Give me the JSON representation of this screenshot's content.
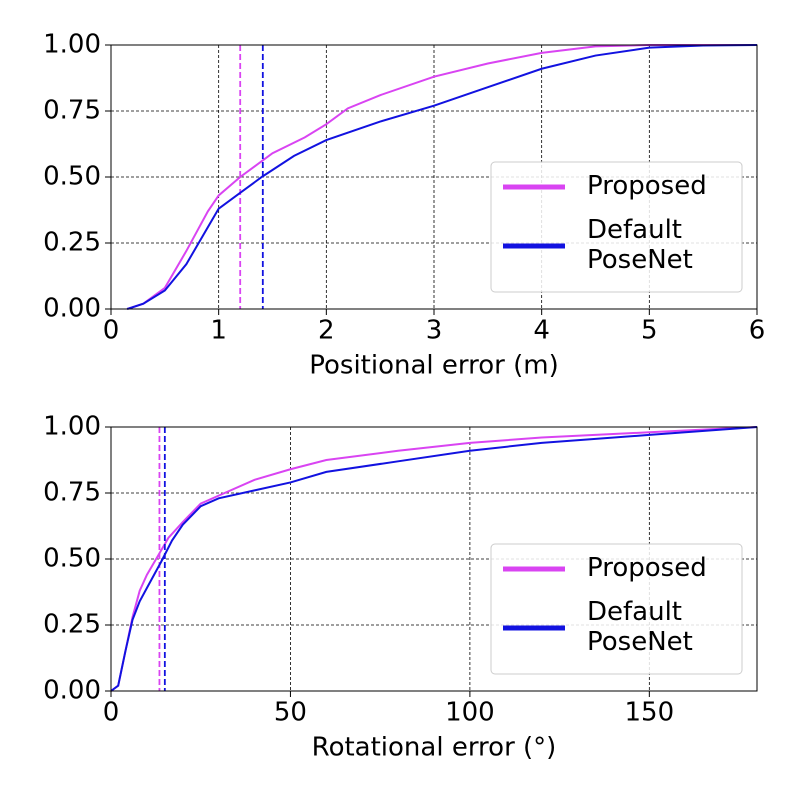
{
  "chart_data": [
    {
      "type": "line",
      "xlabel": "Positional error (m)",
      "xlim": [
        0,
        6
      ],
      "xticks": [
        0,
        1,
        2,
        3,
        4,
        5,
        6
      ],
      "ylim": [
        0,
        1
      ],
      "yticks": [
        {
          "value": 0,
          "label": "0.00"
        },
        {
          "value": 0.25,
          "label": "0.25"
        },
        {
          "value": 0.5,
          "label": "0.50"
        },
        {
          "value": 0.75,
          "label": "0.75"
        },
        {
          "value": 1,
          "label": "1.00"
        }
      ],
      "grid": true,
      "legend": "lower right",
      "series": [
        {
          "name": "Proposed",
          "color": "#d944f2",
          "median": 1.2,
          "x": [
            0.15,
            0.3,
            0.5,
            0.7,
            0.9,
            1.0,
            1.2,
            1.5,
            1.8,
            2.0,
            2.2,
            2.5,
            3.0,
            3.5,
            4.0,
            4.5,
            5.0,
            6.0
          ],
          "values": [
            0,
            0.02,
            0.08,
            0.22,
            0.37,
            0.43,
            0.5,
            0.59,
            0.65,
            0.7,
            0.76,
            0.81,
            0.88,
            0.93,
            0.97,
            0.995,
            1.0,
            1.0
          ]
        },
        {
          "name": "Default\nPoseNet",
          "color": "#1212e0",
          "median": 1.41,
          "x": [
            0.15,
            0.3,
            0.5,
            0.7,
            0.9,
            1.0,
            1.2,
            1.4,
            1.7,
            2.0,
            2.5,
            3.0,
            3.5,
            4.0,
            4.5,
            5.0,
            5.5,
            6.0
          ],
          "values": [
            0,
            0.02,
            0.07,
            0.17,
            0.31,
            0.38,
            0.44,
            0.5,
            0.58,
            0.64,
            0.71,
            0.77,
            0.84,
            0.91,
            0.96,
            0.99,
            0.998,
            1.0
          ]
        }
      ]
    },
    {
      "type": "line",
      "xlabel": "Rotational error (°)",
      "xlim": [
        0,
        180
      ],
      "xticks": [
        0,
        50,
        100,
        150
      ],
      "ylim": [
        0,
        1
      ],
      "yticks": [
        {
          "value": 0,
          "label": "0.00"
        },
        {
          "value": 0.25,
          "label": "0.25"
        },
        {
          "value": 0.5,
          "label": "0.50"
        },
        {
          "value": 0.75,
          "label": "0.75"
        },
        {
          "value": 1,
          "label": "1.00"
        }
      ],
      "grid": true,
      "legend": "lower right",
      "series": [
        {
          "name": "Proposed",
          "color": "#d944f2",
          "median": 13.5,
          "x": [
            0,
            2,
            4,
            6,
            8,
            10,
            13,
            16,
            20,
            25,
            30,
            40,
            50,
            60,
            80,
            100,
            120,
            150,
            180
          ],
          "values": [
            0,
            0.02,
            0.15,
            0.28,
            0.38,
            0.44,
            0.51,
            0.58,
            0.64,
            0.71,
            0.74,
            0.8,
            0.84,
            0.875,
            0.91,
            0.94,
            0.96,
            0.98,
            1.0
          ]
        },
        {
          "name": "Default\nPoseNet",
          "color": "#1212e0",
          "median": 15,
          "x": [
            0,
            2,
            4,
            6,
            8,
            10,
            14,
            17,
            20,
            25,
            30,
            40,
            50,
            60,
            80,
            100,
            120,
            150,
            170,
            180
          ],
          "values": [
            0,
            0.02,
            0.15,
            0.27,
            0.34,
            0.39,
            0.49,
            0.57,
            0.63,
            0.7,
            0.73,
            0.76,
            0.79,
            0.83,
            0.87,
            0.91,
            0.94,
            0.97,
            0.99,
            1.0
          ]
        }
      ]
    }
  ]
}
